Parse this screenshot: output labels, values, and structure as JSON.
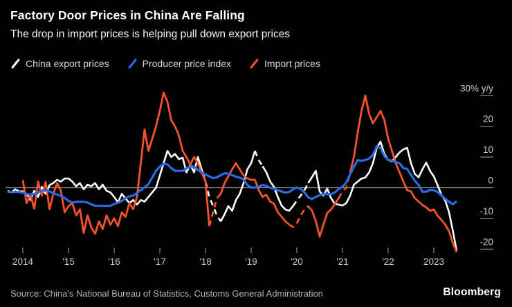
{
  "header": {
    "title": "Factory Door Prices in China Are Falling",
    "subtitle": "The drop in import prices is helping pull down export prices"
  },
  "legend": {
    "items": [
      {
        "label": "China export prices",
        "color": "#ffffff"
      },
      {
        "label": "Producer price index",
        "color": "#2b6be4"
      },
      {
        "label": "Import prices",
        "color": "#f4542c"
      }
    ]
  },
  "chart_data": {
    "type": "line",
    "unit": "% y/y",
    "frequency": "monthly",
    "start_month": "2013-09",
    "x_axis": {
      "tick_years": [
        2014,
        2015,
        2016,
        2017,
        2018,
        2019,
        2020,
        2021,
        2022,
        2023
      ],
      "tick_labels": [
        "2014",
        "'15",
        "'16",
        "'17",
        "'18",
        "'19",
        "'20",
        "'21",
        "'22",
        "2023"
      ]
    },
    "y_axis": {
      "ticks": [
        30,
        20,
        10,
        0,
        -10,
        -20
      ],
      "top_tick_label": "30% y/y",
      "range": [
        -22,
        31
      ],
      "zero_line": true
    },
    "series": [
      {
        "name": "China export prices",
        "color": "#ffffff",
        "dashed_ranges": [
          [
            52,
            56
          ],
          [
            65,
            67
          ],
          [
            75,
            79
          ]
        ],
        "values": [
          -1.0,
          -1.5,
          -0.5,
          -1.2,
          -1.2,
          -2.0,
          -4.0,
          -1.0,
          -3.0,
          0.3,
          -2.0,
          0.8,
          1.5,
          2.6,
          2.0,
          3.0,
          3.0,
          2.0,
          0.5,
          1.5,
          -0.5,
          1.0,
          0.5,
          1.5,
          -0.5,
          1.0,
          -1.0,
          -1.5,
          -3.0,
          -4.8,
          -2.0,
          -3.5,
          -5.0,
          -4.0,
          -5.5,
          -4.0,
          -4.5,
          -3.0,
          -1.5,
          0.0,
          4.0,
          8.0,
          12.0,
          10.0,
          11.0,
          9.3,
          9.8,
          5.0,
          7.5,
          5.0,
          10.0,
          6.0,
          2.0,
          -3.0,
          -6.0,
          -9.0,
          -11.0,
          -8.7,
          -6.0,
          -7.5,
          -4.0,
          -2.0,
          1.5,
          6.0,
          8.0,
          12.0,
          9.0,
          7.0,
          5.0,
          2.0,
          0.3,
          -3.0,
          -5.8,
          -7.1,
          -7.5,
          -6.0,
          -4.2,
          -2.6,
          -0.8,
          1.5,
          3.5,
          5.5,
          -1.2,
          -2.5,
          -0.3,
          -3.4,
          -5.3,
          -5.5,
          -5.8,
          -5.0,
          -2.6,
          1.0,
          2.0,
          3.0,
          3.3,
          5.0,
          8.0,
          13.0,
          15.0,
          11.0,
          9.0,
          8.6,
          10.0,
          11.5,
          12.5,
          13.0,
          8.0,
          4.5,
          3.4,
          6.0,
          8.2,
          5.5,
          3.7,
          0.8,
          -2.3,
          -4.2,
          -8.0,
          -14.0,
          -20.5
        ]
      },
      {
        "name": "Producer price index",
        "color": "#2b6be4",
        "dashed_ranges": [],
        "values": [
          -1.3,
          -1.4,
          -1.4,
          -1.4,
          -1.6,
          -2.0,
          -2.3,
          -2.0,
          -1.4,
          -1.1,
          -0.9,
          -1.2,
          -1.8,
          -2.2,
          -2.7,
          -3.3,
          -4.3,
          -4.8,
          -4.6,
          -4.6,
          -4.6,
          -4.8,
          -5.4,
          -5.9,
          -5.9,
          -5.9,
          -5.9,
          -5.9,
          -5.3,
          -4.9,
          -4.3,
          -3.4,
          -2.8,
          -2.6,
          -1.7,
          -0.8,
          0.1,
          1.2,
          3.3,
          5.5,
          6.9,
          7.8,
          7.6,
          6.4,
          5.5,
          5.5,
          5.5,
          6.3,
          6.9,
          6.9,
          5.8,
          4.9,
          4.3,
          3.7,
          3.1,
          3.4,
          4.1,
          4.7,
          4.6,
          4.1,
          3.6,
          3.3,
          2.7,
          0.9,
          0.1,
          0.1,
          0.4,
          0.9,
          0.6,
          0.0,
          -0.3,
          -0.8,
          -1.2,
          -1.6,
          -1.4,
          -0.5,
          0.1,
          -0.4,
          -1.5,
          -3.1,
          -3.7,
          -3.0,
          -2.4,
          -2.0,
          -2.1,
          -2.1,
          -1.5,
          -0.4,
          0.3,
          1.7,
          4.4,
          6.8,
          9.0,
          8.8,
          9.0,
          9.5,
          10.7,
          13.5,
          12.9,
          10.3,
          9.1,
          8.8,
          8.3,
          8.0,
          6.4,
          6.1,
          4.2,
          2.3,
          0.9,
          -1.3,
          -1.3,
          -0.7,
          -0.8,
          -1.4,
          -2.5,
          -3.6,
          -4.6,
          -5.4,
          -4.4
        ]
      },
      {
        "name": "Import prices",
        "color": "#f4542c",
        "dashed_ranges": [
          [
            53,
            55
          ],
          [
            74,
            79
          ],
          [
            87,
            90
          ]
        ],
        "values": [
          null,
          null,
          null,
          null,
          2.5,
          -5.0,
          -2.3,
          -6.8,
          2.0,
          -2.6,
          1.9,
          -7.0,
          -2.0,
          1.5,
          -1.0,
          -8.0,
          -6.0,
          -5.0,
          -9.0,
          -7.0,
          -14.7,
          -9.0,
          -13.0,
          -15.0,
          -11.0,
          -13.5,
          -9.0,
          -12.0,
          -10.0,
          -12.5,
          -8.0,
          -9.5,
          -5.0,
          -7.0,
          -3.0,
          8.0,
          19.0,
          12.0,
          16.0,
          20.0,
          25.0,
          31.0,
          28.0,
          22.0,
          20.0,
          17.0,
          12.0,
          10.0,
          7.5,
          10.0,
          8.0,
          5.0,
          2.0,
          -12.5,
          -8.0,
          -3.4,
          -2.0,
          1.5,
          3.7,
          6.0,
          8.0,
          6.0,
          4.0,
          3.0,
          2.6,
          2.6,
          -0.8,
          -3.0,
          -2.3,
          -4.5,
          -5.2,
          -8.0,
          -9.4,
          -11.0,
          -12.0,
          -12.8,
          -11.6,
          -9.1,
          -7.1,
          -6.0,
          -7.5,
          -10.9,
          -15.9,
          -12.0,
          -8.2,
          -7.1,
          -5.3,
          -3.4,
          -1.2,
          0.0,
          5.0,
          10.0,
          18.0,
          25.0,
          30.0,
          24.0,
          21.0,
          23.0,
          25.0,
          22.0,
          16.0,
          12.0,
          8.0,
          5.0,
          2.0,
          -0.8,
          -1.2,
          -3.4,
          -4.5,
          -5.6,
          -6.4,
          -7.5,
          -7.1,
          -9.1,
          -10.5,
          -12.0,
          -14.2,
          -18.0,
          -21.0
        ]
      }
    ],
    "title": "Factory Door Prices in China Are Falling",
    "xlabel": "",
    "ylabel": "% y/y",
    "grid": false,
    "legend_position": "top-left"
  },
  "footer": {
    "source": "Source: China's National Bureau of Statistics, Customs General Administration",
    "brand": "Bloomberg"
  }
}
